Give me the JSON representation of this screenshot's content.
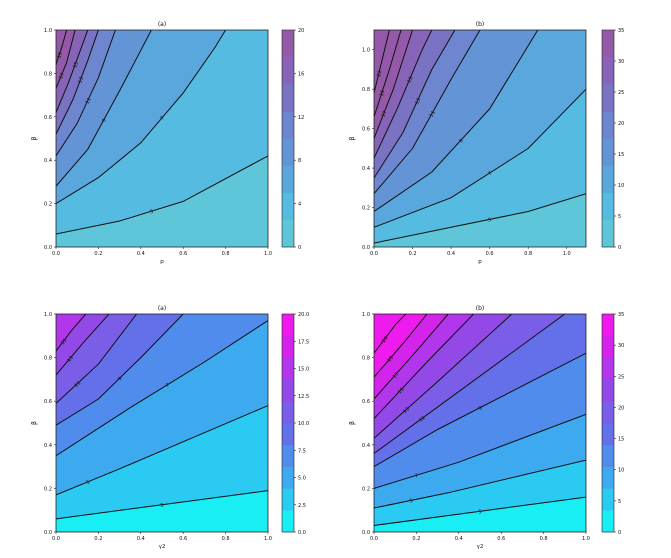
{
  "chart_data": [
    {
      "type": "contour",
      "title": "(a)",
      "xlabel": "p",
      "ylabel": "β",
      "xlim": [
        0,
        1
      ],
      "ylim": [
        0,
        1
      ],
      "xticks": [
        "0.0",
        "0.2",
        "0.4",
        "0.6",
        "0.8",
        "1.0"
      ],
      "yticks": [
        "0.0",
        "0.2",
        "0.4",
        "0.6",
        "0.8",
        "1.0"
      ],
      "colorbar": {
        "min": 0,
        "max": 20,
        "ticks": [
          "0",
          "4",
          "8",
          "12",
          "16",
          "20"
        ]
      },
      "palette": [
        "#5fc6d9",
        "#56bbe0",
        "#5aa7dd",
        "#6395d6",
        "#6e86cf",
        "#7a72c2",
        "#8764b7",
        "#945aa9"
      ],
      "contour_lines": [
        {
          "label": "5",
          "points": [
            [
              0,
              0.06
            ],
            [
              0.3,
              0.12
            ],
            [
              0.6,
              0.21
            ],
            [
              1,
              0.42
            ]
          ]
        },
        {
          "label": "7",
          "points": [
            [
              0,
              0.2
            ],
            [
              0.2,
              0.32
            ],
            [
              0.4,
              0.48
            ],
            [
              0.6,
              0.71
            ],
            [
              0.75,
              0.92
            ],
            [
              0.8,
              1
            ]
          ]
        },
        {
          "label": "9",
          "points": [
            [
              0,
              0.28
            ],
            [
              0.15,
              0.45
            ],
            [
              0.3,
              0.72
            ],
            [
              0.45,
              1
            ]
          ]
        },
        {
          "label": "11",
          "points": [
            [
              0,
              0.42
            ],
            [
              0.1,
              0.57
            ],
            [
              0.2,
              0.78
            ],
            [
              0.28,
              1
            ]
          ]
        },
        {
          "label": "13",
          "points": [
            [
              0,
              0.52
            ],
            [
              0.08,
              0.68
            ],
            [
              0.15,
              0.86
            ],
            [
              0.2,
              1
            ]
          ]
        },
        {
          "label": "15",
          "points": [
            [
              0,
              0.62
            ],
            [
              0.06,
              0.76
            ],
            [
              0.12,
              0.92
            ],
            [
              0.15,
              1
            ]
          ]
        },
        {
          "label": "17",
          "points": [
            [
              0,
              0.73
            ],
            [
              0.05,
              0.85
            ],
            [
              0.09,
              1
            ]
          ]
        },
        {
          "label": "19",
          "points": [
            [
              0,
              0.84
            ],
            [
              0.03,
              0.93
            ],
            [
              0.05,
              1
            ]
          ]
        }
      ]
    },
    {
      "type": "contour",
      "title": "(b)",
      "xlabel": "p",
      "ylabel": "β",
      "xlim": [
        0,
        1.1
      ],
      "ylim": [
        0,
        1.1
      ],
      "xticks": [
        "0.0",
        "0.2",
        "0.4",
        "0.6",
        "0.8",
        "1.0"
      ],
      "yticks": [
        "0.0",
        "0.2",
        "0.4",
        "0.6",
        "0.8",
        "1.0"
      ],
      "colorbar": {
        "min": 0,
        "max": 35,
        "ticks": [
          "0",
          "5",
          "10",
          "15",
          "20",
          "25",
          "30",
          "35"
        ]
      },
      "palette": [
        "#5fc6d9",
        "#56bbe0",
        "#5aa7dd",
        "#6395d6",
        "#6e86cf",
        "#7a72c2",
        "#8764b7",
        "#945aa9"
      ],
      "contour_lines": [
        {
          "label": "5",
          "points": [
            [
              0,
              0.02
            ],
            [
              0.4,
              0.1
            ],
            [
              0.8,
              0.18
            ],
            [
              1.1,
              0.27
            ]
          ]
        },
        {
          "label": "7",
          "points": [
            [
              0,
              0.1
            ],
            [
              0.4,
              0.25
            ],
            [
              0.8,
              0.5
            ],
            [
              1.1,
              0.8
            ]
          ]
        },
        {
          "label": "9",
          "points": [
            [
              0,
              0.18
            ],
            [
              0.3,
              0.38
            ],
            [
              0.6,
              0.7
            ],
            [
              0.85,
              1.1
            ]
          ]
        },
        {
          "label": "11",
          "points": [
            [
              0,
              0.27
            ],
            [
              0.2,
              0.5
            ],
            [
              0.4,
              0.85
            ],
            [
              0.55,
              1.1
            ]
          ]
        },
        {
          "label": "13",
          "points": [
            [
              0,
              0.35
            ],
            [
              0.15,
              0.58
            ],
            [
              0.3,
              0.9
            ],
            [
              0.42,
              1.1
            ]
          ]
        },
        {
          "label": "15",
          "points": [
            [
              0,
              0.45
            ],
            [
              0.12,
              0.7
            ],
            [
              0.25,
              1
            ],
            [
              0.3,
              1.1
            ]
          ]
        },
        {
          "label": "17",
          "points": [
            [
              0,
              0.55
            ],
            [
              0.1,
              0.8
            ],
            [
              0.2,
              1.1
            ]
          ]
        },
        {
          "label": "19",
          "points": [
            [
              0,
              0.66
            ],
            [
              0.08,
              0.9
            ],
            [
              0.14,
              1.1
            ]
          ]
        },
        {
          "label": "21",
          "points": [
            [
              0,
              0.78
            ],
            [
              0.05,
              0.98
            ],
            [
              0.08,
              1.1
            ]
          ]
        }
      ]
    },
    {
      "type": "contour",
      "title": "(a)",
      "xlabel": "γ2",
      "ylabel": "β",
      "xlim": [
        0,
        1
      ],
      "ylim": [
        0,
        1
      ],
      "xticks": [
        "0.0",
        "0.2",
        "0.4",
        "0.6",
        "0.8",
        "1.0"
      ],
      "yticks": [
        "0.0",
        "0.2",
        "0.4",
        "0.6",
        "0.8",
        "1.0"
      ],
      "colorbar": {
        "min": 0,
        "max": 20,
        "ticks": [
          "0.0",
          "2.5",
          "5.0",
          "7.5",
          "10.0",
          "12.5",
          "15.0",
          "17.5",
          "20.0"
        ]
      },
      "palette": [
        "#19eef5",
        "#2bcaf2",
        "#3daaf0",
        "#4f8cec",
        "#6370ea",
        "#7a5ee8",
        "#9349e8",
        "#b236eb",
        "#d323ec",
        "#ee1aee"
      ],
      "contour_lines": [
        {
          "label": "5",
          "points": [
            [
              0,
              0.06
            ],
            [
              1,
              0.19
            ]
          ]
        },
        {
          "label": "5",
          "points": [
            [
              0,
              0.17
            ],
            [
              0.3,
              0.29
            ],
            [
              1,
              0.58
            ]
          ]
        },
        {
          "label": "7",
          "points": [
            [
              0,
              0.35
            ],
            [
              0.35,
              0.57
            ],
            [
              0.7,
              0.78
            ],
            [
              1,
              0.97
            ]
          ]
        },
        {
          "label": "9",
          "points": [
            [
              0,
              0.49
            ],
            [
              0.2,
              0.61
            ],
            [
              0.4,
              0.8
            ],
            [
              0.6,
              1
            ]
          ]
        },
        {
          "label": "11",
          "points": [
            [
              0,
              0.59
            ],
            [
              0.2,
              0.77
            ],
            [
              0.38,
              1
            ]
          ]
        },
        {
          "label": "13",
          "points": [
            [
              0,
              0.72
            ],
            [
              0.13,
              0.87
            ],
            [
              0.25,
              1
            ]
          ]
        },
        {
          "label": "15",
          "points": [
            [
              0,
              0.83
            ],
            [
              0.07,
              0.92
            ],
            [
              0.14,
              1
            ]
          ]
        }
      ]
    },
    {
      "type": "contour",
      "title": "(b)",
      "xlabel": "γ2",
      "ylabel": "β",
      "xlim": [
        0,
        1
      ],
      "ylim": [
        0,
        1
      ],
      "xticks": [
        "0.0",
        "0.2",
        "0.4",
        "0.6",
        "0.8",
        "1.0"
      ],
      "yticks": [
        "0.0",
        "0.2",
        "0.4",
        "0.6",
        "0.8",
        "1.0"
      ],
      "colorbar": {
        "min": 0,
        "max": 35,
        "ticks": [
          "0",
          "5",
          "10",
          "15",
          "20",
          "25",
          "30",
          "35"
        ]
      },
      "palette": [
        "#19eef5",
        "#2bcaf2",
        "#3daaf0",
        "#4f8cec",
        "#6370ea",
        "#7a5ee8",
        "#9349e8",
        "#b236eb",
        "#d323ec",
        "#ee1aee"
      ],
      "contour_lines": [
        {
          "label": "5",
          "points": [
            [
              0,
              0.03
            ],
            [
              1,
              0.16
            ]
          ]
        },
        {
          "label": "5",
          "points": [
            [
              0,
              0.11
            ],
            [
              0.35,
              0.18
            ],
            [
              1,
              0.33
            ]
          ]
        },
        {
          "label": "7",
          "points": [
            [
              0,
              0.2
            ],
            [
              0.4,
              0.32
            ],
            [
              1,
              0.54
            ]
          ]
        },
        {
          "label": "9",
          "points": [
            [
              0,
              0.3
            ],
            [
              0.3,
              0.47
            ],
            [
              0.7,
              0.67
            ],
            [
              1,
              0.82
            ]
          ]
        },
        {
          "label": "11",
          "points": [
            [
              0,
              0.36
            ],
            [
              0.45,
              0.68
            ],
            [
              0.9,
              1
            ]
          ]
        },
        {
          "label": "13",
          "points": [
            [
              0,
              0.43
            ],
            [
              0.3,
              0.69
            ],
            [
              0.65,
              1
            ]
          ]
        },
        {
          "label": "15",
          "points": [
            [
              0,
              0.52
            ],
            [
              0.25,
              0.78
            ],
            [
              0.47,
              1
            ]
          ]
        },
        {
          "label": "17",
          "points": [
            [
              0,
              0.61
            ],
            [
              0.2,
              0.83
            ],
            [
              0.35,
              1
            ]
          ]
        },
        {
          "label": "19",
          "points": [
            [
              0,
              0.71
            ],
            [
              0.15,
              0.88
            ],
            [
              0.25,
              1
            ]
          ]
        },
        {
          "label": "21",
          "points": [
            [
              0,
              0.82
            ],
            [
              0.1,
              0.95
            ],
            [
              0.15,
              1
            ]
          ]
        }
      ]
    }
  ]
}
